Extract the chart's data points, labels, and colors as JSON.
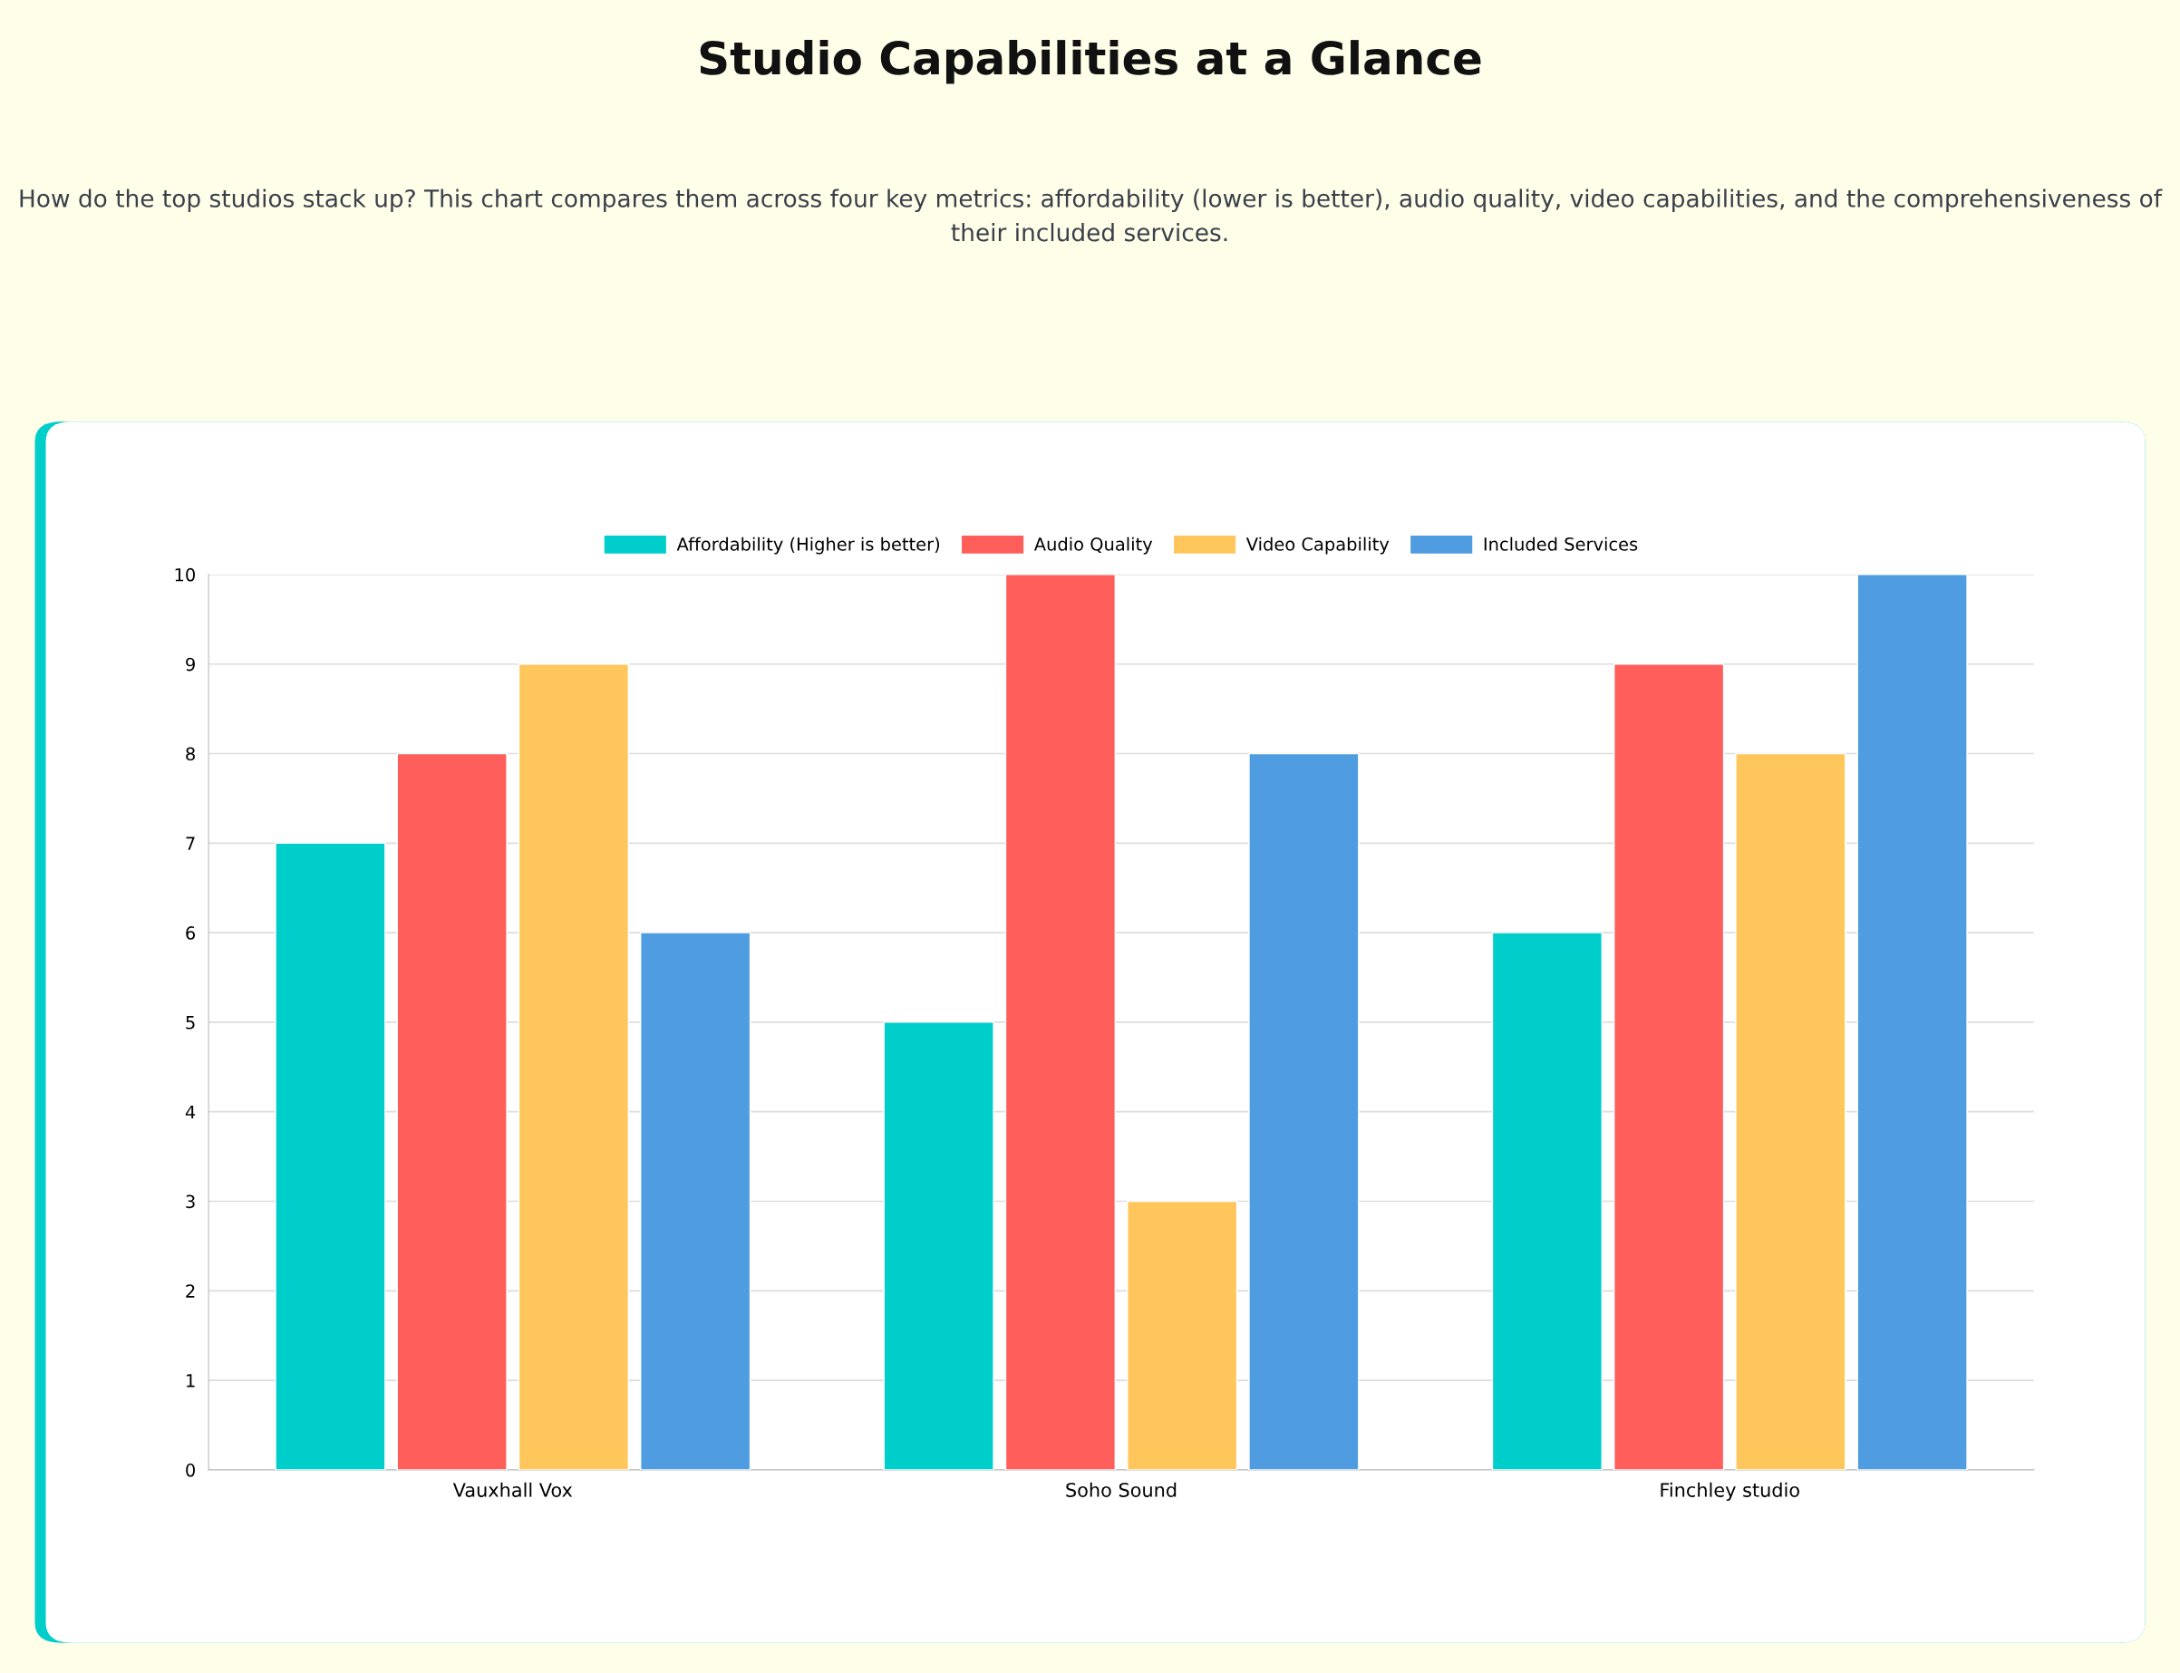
{
  "chart_data": {
    "type": "bar",
    "title": "Studio Capabilities at a Glance",
    "subtitle": "How do the top studios stack up? This chart compares them across four key metrics: affordability (lower is better), audio quality, video capabilities, and the comprehensiveness of their included services.",
    "categories": [
      "Vauxhall Vox",
      "Soho Sound",
      "Finchley studio"
    ],
    "series": [
      {
        "name": "Affordability (Higher is better)",
        "color": "#00cecb",
        "values": [
          7,
          5,
          6
        ]
      },
      {
        "name": "Audio Quality",
        "color": "#ff5e5b",
        "values": [
          8,
          10,
          9
        ]
      },
      {
        "name": "Video Capability",
        "color": "#ffc65c",
        "values": [
          9,
          3,
          8
        ]
      },
      {
        "name": "Included Services",
        "color": "#4f9de0",
        "values": [
          6,
          8,
          10
        ]
      }
    ],
    "ylim": [
      0,
      10
    ],
    "yticks": [
      0,
      1,
      2,
      3,
      4,
      5,
      6,
      7,
      8,
      9,
      10
    ],
    "grid": "y",
    "legend": "top"
  }
}
